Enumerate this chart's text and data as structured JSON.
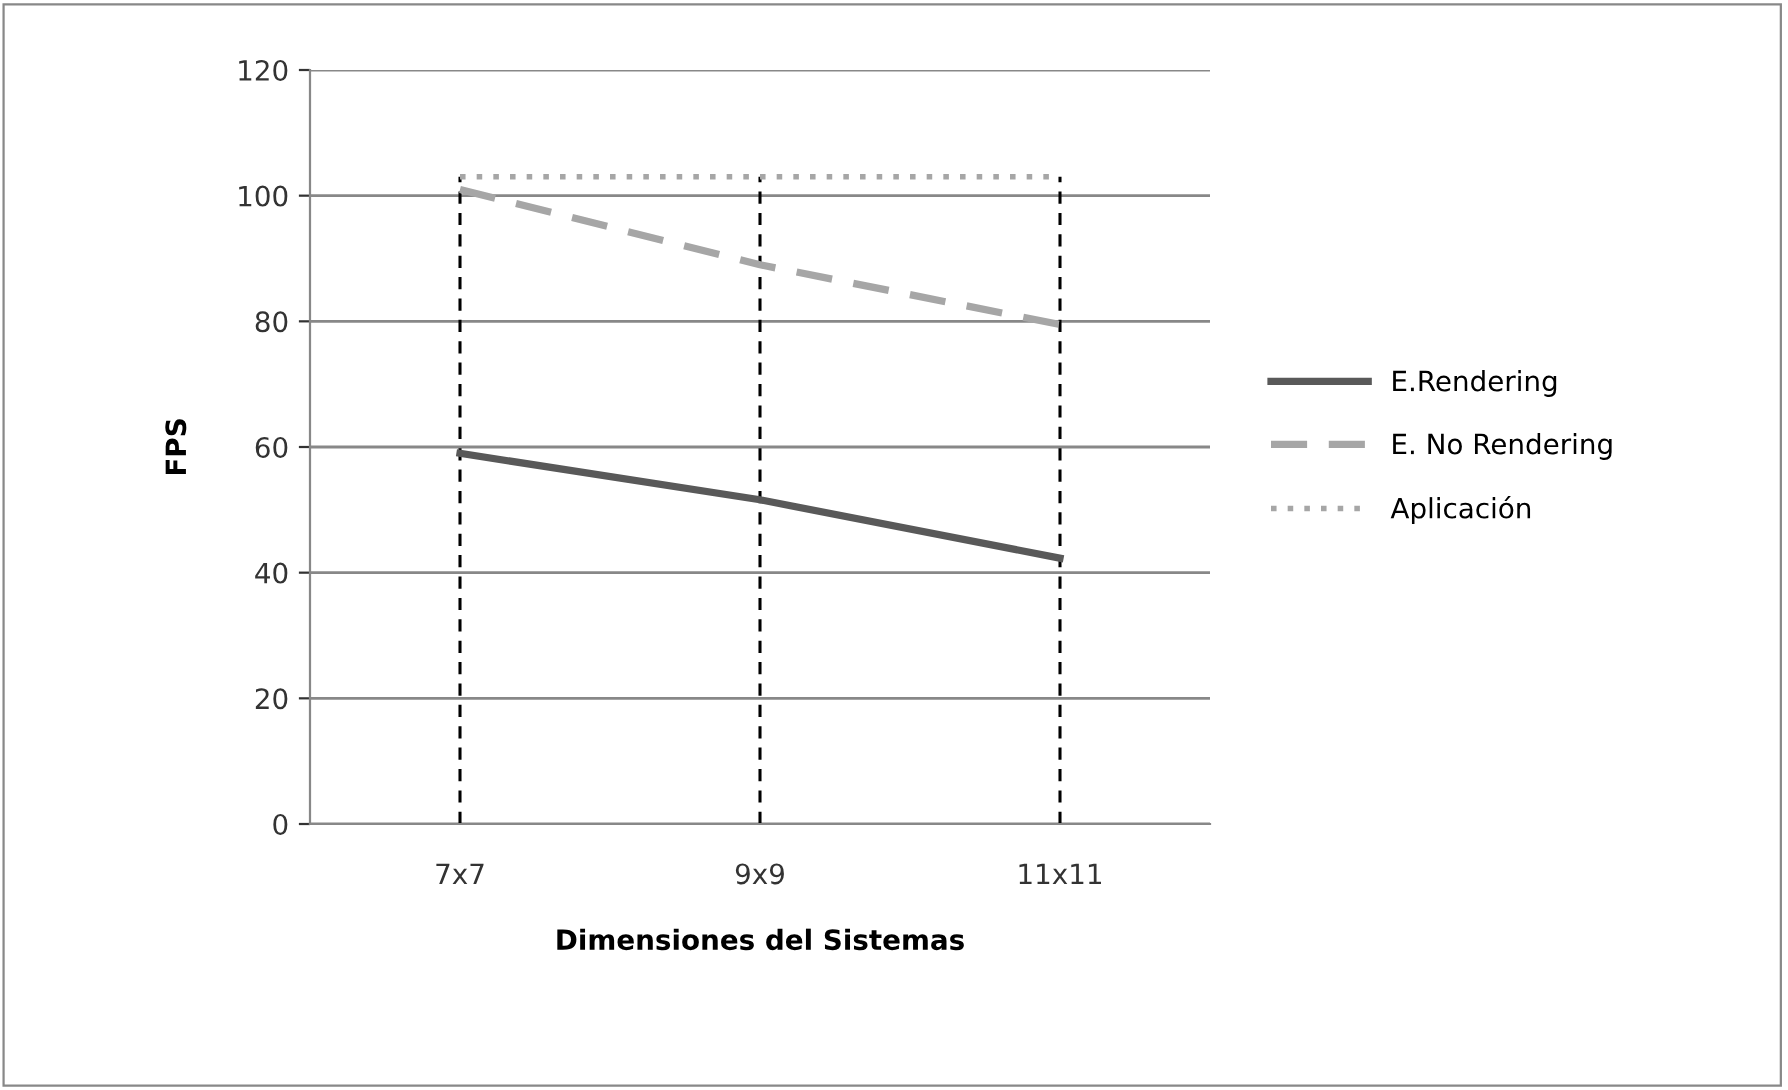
{
  "chart_data": {
    "type": "line",
    "xlabel": "Dimensiones del Sistemas",
    "ylabel": "FPS",
    "categories": [
      "7x7",
      "9x9",
      "11x11"
    ],
    "ylim": [
      0,
      120
    ],
    "yticks": [
      0,
      20,
      40,
      60,
      80,
      100,
      120
    ],
    "grid": "y",
    "legend": "right",
    "marker": "none",
    "series": [
      {
        "name": "E.Rendering",
        "color": "#595959",
        "values": [
          59,
          51.6,
          42.3
        ],
        "line_style": "solid"
      },
      {
        "name": "E. No Rendering",
        "color": "#a6a6a6",
        "values": [
          101,
          89,
          79.5
        ],
        "line_style": "dashed"
      },
      {
        "name": "Aplicación",
        "color": "#a6a6a6",
        "values": [
          103,
          103,
          103
        ],
        "line_style": "dotted"
      }
    ],
    "ref_lines": [
      {
        "axis": "x",
        "value": "7x7",
        "color": "#000000",
        "line_style": "dashed"
      },
      {
        "axis": "x",
        "value": "9x9",
        "color": "#000000",
        "line_style": "dashed"
      },
      {
        "axis": "x",
        "value": "11x11",
        "color": "#000000",
        "line_style": "dashed"
      }
    ]
  }
}
